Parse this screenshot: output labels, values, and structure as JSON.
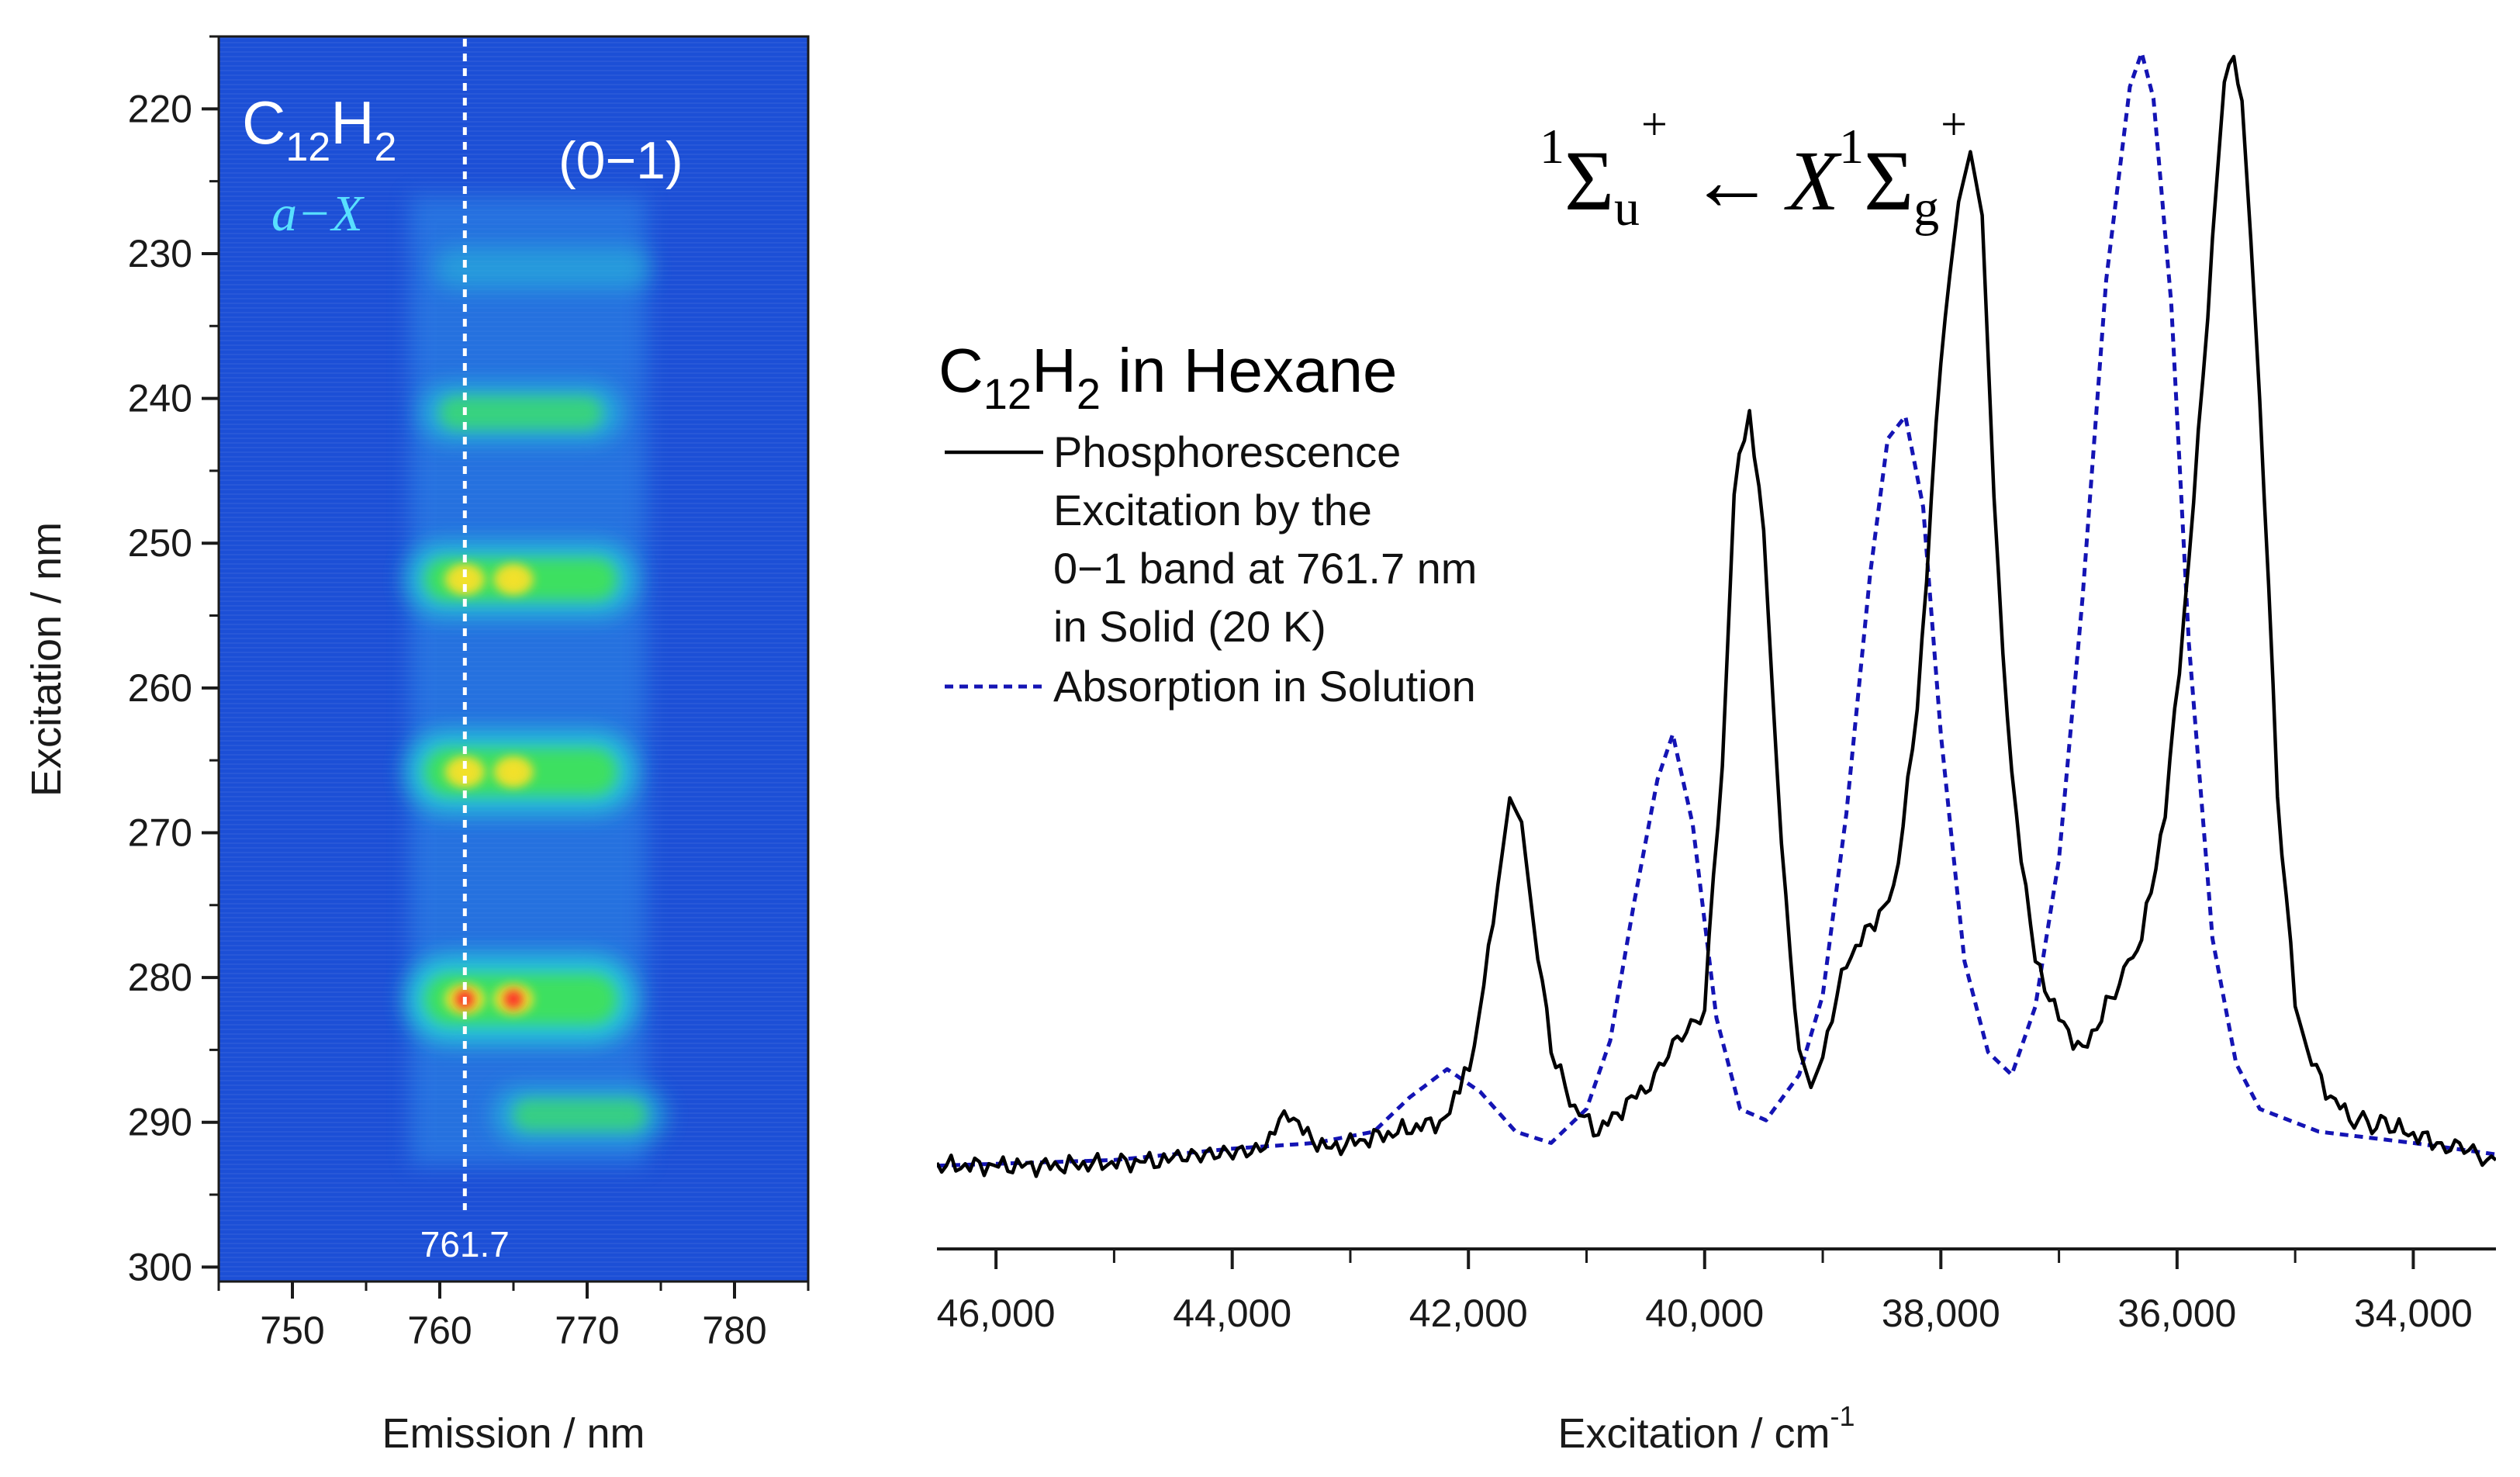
{
  "chart_data": [
    {
      "type": "heatmap",
      "title": "C12H2 a−X (0−1) emission/excitation map",
      "molecule": {
        "base": "C",
        "sub1": "12",
        "mid": "H",
        "sub2": "2"
      },
      "transition_label": "a−X",
      "band_label": "(0−1)",
      "xlabel": "Emission / nm",
      "ylabel": "Excitation / nm",
      "xlim": [
        745,
        785
      ],
      "ylim": [
        215,
        301
      ],
      "xticks": [
        750,
        760,
        770,
        780
      ],
      "yticks": [
        220,
        230,
        240,
        250,
        260,
        270,
        280,
        290,
        300
      ],
      "marker_line": {
        "x": 761.7,
        "label": "761.7"
      },
      "colors": {
        "background": "#1c4fd6",
        "low": "#2e8ee8",
        "mid": "#28d3d8",
        "high": "#3ee061",
        "peak": "#f5e12a",
        "max": "#ff2a2a"
      },
      "bands": [
        {
          "excitation_nm": 231,
          "emission_nm": [
            761,
            773
          ],
          "intensity": 0.15
        },
        {
          "excitation_nm": 241,
          "emission_nm": [
            760,
            771
          ],
          "intensity": 0.45
        },
        {
          "excitation_nm": 252.5,
          "emission_nm": [
            759,
            772
          ],
          "intensity": 0.75
        },
        {
          "excitation_nm": 265.8,
          "emission_nm": [
            759,
            772
          ],
          "intensity": 0.9
        },
        {
          "excitation_nm": 281.5,
          "emission_nm": [
            759,
            772
          ],
          "intensity": 1.0
        },
        {
          "excitation_nm": 289.5,
          "emission_nm": [
            765,
            774
          ],
          "intensity": 0.4
        }
      ],
      "hotspots": [
        {
          "emission_nm": 761.7,
          "excitation_nm": 252.5,
          "level": "peak"
        },
        {
          "emission_nm": 765,
          "excitation_nm": 252.5,
          "level": "peak"
        },
        {
          "emission_nm": 761.7,
          "excitation_nm": 265.8,
          "level": "peak"
        },
        {
          "emission_nm": 765,
          "excitation_nm": 265.8,
          "level": "peak"
        },
        {
          "emission_nm": 761.7,
          "excitation_nm": 281.5,
          "level": "max"
        },
        {
          "emission_nm": 765,
          "excitation_nm": 281.5,
          "level": "max"
        }
      ]
    },
    {
      "type": "line",
      "title": "C12H2 in Hexane",
      "molecule": {
        "base": "C",
        "sub1": "12",
        "mid": "H",
        "sub2": "2",
        "suffix": " in Hexane"
      },
      "transition": {
        "upper": "Σ",
        "upper_sub": "u",
        "upper_sup": "+",
        "mult": "1",
        "arrow": "←",
        "ground": "X",
        "lower": "Σ",
        "lower_sub": "g",
        "lower_sup": "+"
      },
      "xlabel": "Excitation / cm",
      "xlabel_sup": "-1",
      "xlim": [
        46500,
        33300
      ],
      "x_reversed": true,
      "ylim": [
        0,
        1.05
      ],
      "xticks": [
        46000,
        44000,
        42000,
        40000,
        38000,
        36000,
        34000
      ],
      "xtick_labels": [
        "46,000",
        "44,000",
        "42,000",
        "40,000",
        "38,000",
        "36,000",
        "34,000"
      ],
      "legend": {
        "position": "top-left",
        "entries": [
          {
            "style": "solid",
            "lines": [
              "Phosphorescence",
              "Excitation by the",
              "0−1 band at 761.7 nm",
              "in Solid (20 K)"
            ]
          },
          {
            "style": "dashed",
            "lines": [
              "Absorption in Solution"
            ]
          }
        ]
      },
      "series": [
        {
          "name": "Phosphorescence Excitation by the 0−1 band at 761.7 nm in Solid (20 K)",
          "color": "#000000",
          "style": "solid",
          "x": [
            46500,
            45500,
            44500,
            43800,
            43520,
            43400,
            43200,
            42800,
            42200,
            41950,
            41750,
            41650,
            41550,
            41450,
            41300,
            41100,
            40900,
            40500,
            40000,
            39850,
            39750,
            39620,
            39500,
            39350,
            39200,
            39100,
            39000,
            38800,
            38600,
            38400,
            38200,
            38000,
            37850,
            37750,
            37650,
            37550,
            37400,
            37200,
            37000,
            36800,
            36600,
            36300,
            36100,
            35900,
            35700,
            35600,
            35520,
            35450,
            35300,
            35150,
            35000,
            34900,
            34700,
            34500,
            34200,
            33800,
            33300
          ],
          "values": [
            0.02,
            0.02,
            0.025,
            0.03,
            0.068,
            0.05,
            0.035,
            0.045,
            0.06,
            0.12,
            0.27,
            0.35,
            0.33,
            0.24,
            0.12,
            0.07,
            0.05,
            0.09,
            0.16,
            0.38,
            0.62,
            0.68,
            0.58,
            0.3,
            0.12,
            0.09,
            0.12,
            0.2,
            0.23,
            0.26,
            0.42,
            0.73,
            0.87,
            0.91,
            0.85,
            0.6,
            0.36,
            0.2,
            0.15,
            0.12,
            0.16,
            0.22,
            0.33,
            0.55,
            0.83,
            0.97,
            1.0,
            0.96,
            0.7,
            0.35,
            0.16,
            0.12,
            0.08,
            0.06,
            0.055,
            0.04,
            0.025
          ]
        },
        {
          "name": "Absorption in Solution",
          "color": "#1414b4",
          "style": "dashed",
          "x": [
            46500,
            45000,
            44000,
            43300,
            42800,
            42500,
            42180,
            41900,
            41600,
            41300,
            41000,
            40800,
            40600,
            40400,
            40270,
            40100,
            39900,
            39700,
            39480,
            39200,
            39000,
            38800,
            38600,
            38450,
            38300,
            38150,
            38000,
            37800,
            37600,
            37400,
            37200,
            37000,
            36800,
            36600,
            36400,
            36300,
            36200,
            36050,
            35900,
            35700,
            35500,
            35300,
            34800,
            34000,
            33300
          ],
          "values": [
            0.02,
            0.025,
            0.035,
            0.04,
            0.05,
            0.08,
            0.105,
            0.085,
            0.05,
            0.04,
            0.07,
            0.13,
            0.25,
            0.36,
            0.4,
            0.32,
            0.15,
            0.07,
            0.06,
            0.1,
            0.17,
            0.33,
            0.54,
            0.66,
            0.68,
            0.6,
            0.4,
            0.2,
            0.12,
            0.1,
            0.16,
            0.29,
            0.52,
            0.8,
            0.97,
            1.0,
            0.96,
            0.78,
            0.48,
            0.22,
            0.11,
            0.07,
            0.05,
            0.04,
            0.03
          ]
        }
      ]
    }
  ]
}
